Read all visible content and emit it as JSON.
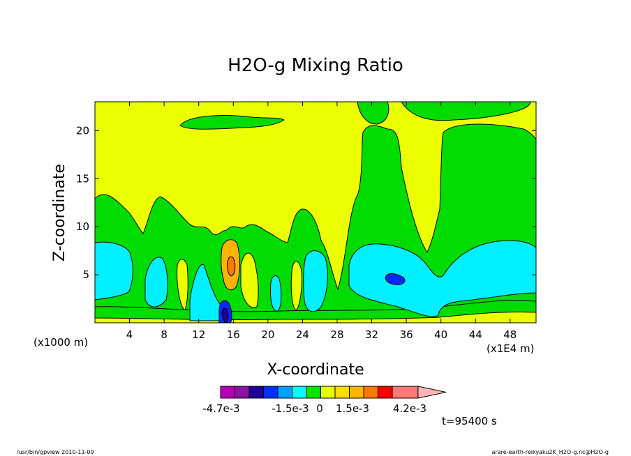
{
  "chart_data": {
    "type": "heatmap",
    "title": "H2O-g Mixing Ratio",
    "xlabel": "X-coordinate",
    "ylabel": "Z-coordinate",
    "x_unit_left": "(x1000 m)",
    "x_unit_right": "(x1E4 m)",
    "xlim": [
      0,
      51
    ],
    "ylim": [
      0,
      23
    ],
    "x_ticks": [
      4,
      8,
      12,
      16,
      20,
      24,
      28,
      32,
      36,
      40,
      44,
      48
    ],
    "y_ticks": [
      5,
      10,
      15,
      20
    ],
    "colorbar": {
      "levels": [
        "-4.7e-3",
        "-1.5e-3",
        "0",
        "1.5e-3",
        "4.2e-3"
      ],
      "colors": [
        "#b400b4",
        "#8c14a0",
        "#1e0096",
        "#0032ff",
        "#00a0ff",
        "#00ffff",
        "#00e600",
        "#e6ff00",
        "#ffdc00",
        "#ffb400",
        "#ff7800",
        "#ff0000",
        "#ff7878",
        "#ffb4b4"
      ]
    },
    "regions": [
      {
        "name": "background",
        "color": "#ebff00"
      },
      {
        "name": "lower-green-band",
        "color": "#00dc00"
      },
      {
        "name": "upper-green-tongue",
        "color": "#00dc00"
      },
      {
        "name": "right-green-column",
        "color": "#00dc00"
      },
      {
        "name": "left-cyan-pocket",
        "color": "#00f0ff"
      },
      {
        "name": "right-cyan-pocket",
        "color": "#00f0ff"
      },
      {
        "name": "orange-core",
        "color": "#ffb400"
      },
      {
        "name": "blue-core",
        "color": "#0028ff"
      }
    ]
  },
  "annotations": {
    "time": "t=95400 s",
    "footer_left": "/usr/bin/gpview   2010-11-09",
    "footer_right": "arare-earth-reikyaku2K_H2O-g.nc@H2O-g"
  }
}
